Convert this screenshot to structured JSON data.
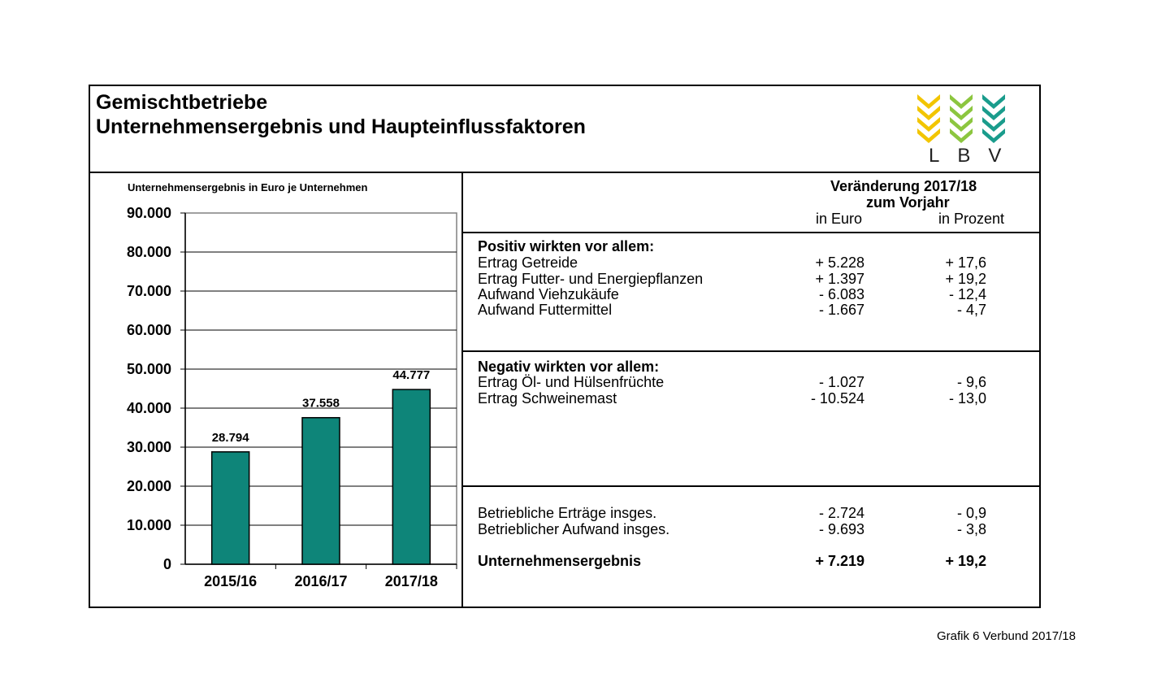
{
  "header": {
    "title_line1": "Gemischtbetriebe",
    "title_line2": "Unternehmensergebnis und Haupteinflussfaktoren",
    "logo_text": "LBV",
    "logo_colors": [
      "#f2c500",
      "#8cc63f",
      "#1a9c8c"
    ]
  },
  "chart_data": {
    "type": "bar",
    "title": "Unternehmensergebnis in Euro je Unternehmen",
    "categories": [
      "2015/16",
      "2016/17",
      "2017/18"
    ],
    "values": [
      28794,
      37558,
      44777
    ],
    "value_labels": [
      "28.794",
      "37.558",
      "44.777"
    ],
    "ylim": [
      0,
      90000
    ],
    "yticks": [
      0,
      10000,
      20000,
      30000,
      40000,
      50000,
      60000,
      70000,
      80000,
      90000
    ],
    "ytick_labels": [
      "0",
      "10.000",
      "20.000",
      "30.000",
      "40.000",
      "50.000",
      "60.000",
      "70.000",
      "80.000",
      "90.000"
    ],
    "bar_color": "#0e8579",
    "grid": true
  },
  "table": {
    "head_line1": "Veränderung 2017/18",
    "head_line2": "zum Vorjahr",
    "col_euro": "in Euro",
    "col_pct": "in Prozent",
    "positive": {
      "heading": "Positiv wirkten vor allem:",
      "rows": [
        {
          "label": "Ertrag Getreide",
          "euro": "+ 5.228",
          "pct": "+ 17,6"
        },
        {
          "label": "Ertrag Futter- und Energiepflanzen",
          "euro": "+ 1.397",
          "pct": "+ 19,2"
        },
        {
          "label": "Aufwand Viehzukäufe",
          "euro": "- 6.083",
          "pct": "- 12,4"
        },
        {
          "label": "Aufwand Futtermittel",
          "euro": "- 1.667",
          "pct": "- 4,7"
        }
      ]
    },
    "negative": {
      "heading": "Negativ wirkten vor allem:",
      "rows": [
        {
          "label": "Ertrag Öl- und Hülsenfrüchte",
          "euro": "- 1.027",
          "pct": "- 9,6"
        },
        {
          "label": "Ertrag Schweinemast",
          "euro": "- 10.524",
          "pct": "- 13,0"
        }
      ]
    },
    "totals": [
      {
        "label": "Betriebliche Erträge insges.",
        "euro": "- 2.724",
        "pct": "- 0,9"
      },
      {
        "label": "Betrieblicher Aufwand insges.",
        "euro": "- 9.693",
        "pct": "- 3,8"
      },
      {
        "label": "Unternehmensergebnis",
        "euro": "+ 7.219",
        "pct": "+ 19,2"
      }
    ]
  },
  "footnote": "Grafik 6 Verbund 2017/18"
}
